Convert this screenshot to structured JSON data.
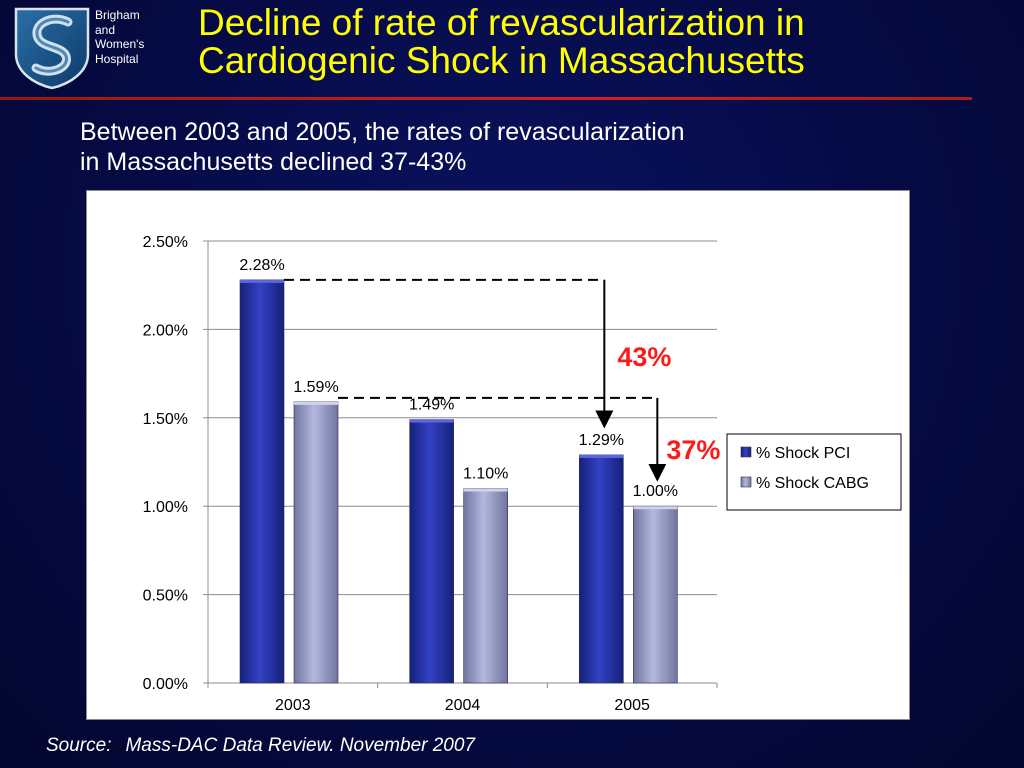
{
  "header": {
    "org_name": [
      "Brigham",
      "and",
      "Women's",
      "Hospital"
    ],
    "title": [
      "Decline of rate of revascularization in",
      "Cardiogenic Shock in Massachusetts"
    ],
    "subtitle": [
      "Between 2003 and 2005, the rates of revascularization",
      "in Massachusetts declined 37-43%"
    ]
  },
  "chart_data": {
    "type": "bar",
    "categories": [
      "2003",
      "2004",
      "2005"
    ],
    "series": [
      {
        "name": "% Shock PCI",
        "values": [
          2.28,
          1.49,
          1.29
        ],
        "labels": [
          "2.28%",
          "1.49%",
          "1.29%"
        ],
        "color": "#1f2a99"
      },
      {
        "name": "% Shock CABG",
        "values": [
          1.59,
          1.1,
          1.0
        ],
        "labels": [
          "1.59%",
          "1.10%",
          "1.00%"
        ],
        "color": "#8e93c4"
      }
    ],
    "yticks": [
      0,
      0.5,
      1.0,
      1.5,
      2.0,
      2.5
    ],
    "ytick_labels": [
      "0.00%",
      "0.50%",
      "1.00%",
      "1.50%",
      "2.00%",
      "2.50%"
    ],
    "ylim": [
      0,
      2.5
    ],
    "grid": true,
    "legend": "right",
    "annotations": [
      {
        "text": "43%",
        "from_value": 2.28,
        "to_value": 1.29,
        "color": "#ff1a1a"
      },
      {
        "text": "37%",
        "from_value": 1.59,
        "to_value": 1.0,
        "color": "#ff1a1a"
      }
    ]
  },
  "footer": {
    "source_label": "Source:",
    "source_text": "Mass-DAC Data Review.  November 2007"
  }
}
